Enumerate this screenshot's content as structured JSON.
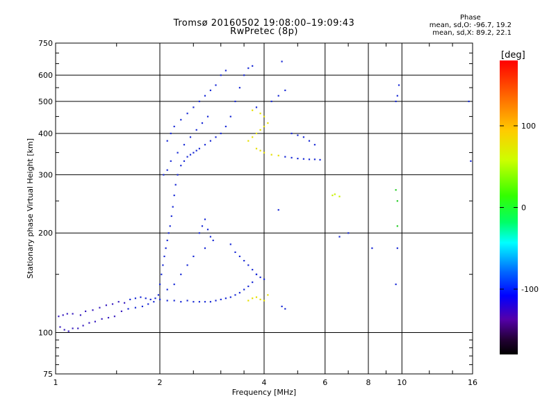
{
  "header": {
    "title_line1": "Tromsø 20160502 19:08:00–19:09:43",
    "title_line2": "RwPretec (8p)"
  },
  "phase_stats": {
    "title": "Phase",
    "line_o": "mean, sd,O: -96.7, 19.2",
    "line_x": "mean, sd,X: 89.2, 22.1"
  },
  "colorbar": {
    "unit_label": "[deg]",
    "tick_labels": [
      "100",
      "0",
      "-100"
    ],
    "tick_values": [
      100,
      0,
      -100
    ],
    "range": [
      -180,
      180
    ]
  },
  "chart_data": {
    "type": "scatter",
    "title": "Tromsø 20160502 19:08:00–19:09:43",
    "subtitle": "RwPretec (8p)",
    "xlabel": "Frequency [MHz]",
    "ylabel": "Stationary phase Virtual Height [km]",
    "x_scale": "log",
    "y_scale": "log",
    "xlim": [
      1,
      16
    ],
    "ylim": [
      75,
      750
    ],
    "x_ticks": [
      1,
      2,
      4,
      6,
      8,
      10,
      16
    ],
    "x_tick_labels": [
      "1",
      "2",
      "4",
      "6",
      "8",
      "10",
      "16"
    ],
    "y_ticks": [
      75,
      100,
      200,
      300,
      400,
      500,
      600,
      750
    ],
    "y_tick_labels": [
      "75",
      "100",
      "200",
      "300",
      "400",
      "500",
      "600",
      "750"
    ],
    "grid": true,
    "color_encoding": "phase [deg]",
    "series": [
      {
        "points": [
          [
            1.02,
            112
          ],
          [
            1.05,
            113
          ],
          [
            1.08,
            114
          ],
          [
            1.12,
            114
          ],
          [
            1.18,
            113
          ],
          [
            1.22,
            116
          ],
          [
            1.28,
            117
          ],
          [
            1.34,
            119
          ],
          [
            1.4,
            121
          ],
          [
            1.46,
            122
          ],
          [
            1.52,
            124
          ],
          [
            1.58,
            123
          ],
          [
            1.64,
            126
          ],
          [
            1.7,
            127
          ],
          [
            1.76,
            128
          ],
          [
            1.82,
            127
          ],
          [
            1.88,
            126
          ],
          [
            1.94,
            127
          ],
          [
            2.0,
            126
          ],
          [
            2.1,
            125
          ],
          [
            2.2,
            125
          ],
          [
            2.3,
            124
          ],
          [
            2.4,
            125
          ],
          [
            2.5,
            124
          ],
          [
            2.6,
            124
          ],
          [
            2.7,
            124
          ],
          [
            2.8,
            124
          ],
          [
            2.9,
            125
          ],
          [
            3.0,
            126
          ],
          [
            3.1,
            127
          ],
          [
            3.2,
            128
          ],
          [
            3.3,
            130
          ],
          [
            3.4,
            132
          ],
          [
            3.5,
            135
          ],
          [
            3.6,
            138
          ],
          [
            3.7,
            142
          ],
          [
            3.8,
            150
          ],
          [
            1.03,
            104
          ],
          [
            1.06,
            102
          ],
          [
            1.09,
            101
          ],
          [
            1.12,
            103
          ],
          [
            1.16,
            103
          ],
          [
            1.2,
            105
          ],
          [
            1.25,
            107
          ],
          [
            1.3,
            108
          ],
          [
            1.36,
            110
          ],
          [
            1.42,
            111
          ],
          [
            1.48,
            112
          ],
          [
            1.55,
            116
          ],
          [
            1.62,
            118
          ],
          [
            1.7,
            119
          ],
          [
            1.78,
            120
          ],
          [
            1.85,
            122
          ],
          [
            1.92,
            124
          ],
          [
            1.98,
            130
          ],
          [
            2.0,
            140
          ],
          [
            2.02,
            150
          ],
          [
            2.04,
            160
          ],
          [
            2.06,
            170
          ],
          [
            2.08,
            180
          ],
          [
            2.1,
            190
          ],
          [
            2.12,
            200
          ],
          [
            2.14,
            210
          ],
          [
            2.16,
            225
          ],
          [
            2.18,
            240
          ],
          [
            2.2,
            260
          ],
          [
            2.22,
            280
          ],
          [
            2.25,
            300
          ],
          [
            2.3,
            320
          ],
          [
            2.35,
            330
          ],
          [
            2.4,
            340
          ],
          [
            2.45,
            345
          ],
          [
            2.5,
            350
          ],
          [
            2.55,
            355
          ],
          [
            2.6,
            360
          ],
          [
            2.7,
            370
          ],
          [
            2.8,
            380
          ],
          [
            2.9,
            390
          ],
          [
            3.0,
            400
          ],
          [
            3.1,
            420
          ],
          [
            3.2,
            450
          ],
          [
            3.3,
            500
          ],
          [
            3.4,
            550
          ],
          [
            3.5,
            600
          ],
          [
            3.6,
            630
          ],
          [
            3.7,
            640
          ],
          [
            2.1,
            380
          ],
          [
            2.15,
            400
          ],
          [
            2.2,
            420
          ],
          [
            2.3,
            440
          ],
          [
            2.4,
            460
          ],
          [
            2.5,
            480
          ],
          [
            2.6,
            500
          ],
          [
            2.7,
            520
          ],
          [
            2.8,
            540
          ],
          [
            2.9,
            560
          ],
          [
            3.0,
            600
          ],
          [
            3.1,
            620
          ],
          [
            2.05,
            300
          ],
          [
            2.1,
            310
          ],
          [
            2.15,
            330
          ],
          [
            2.25,
            350
          ],
          [
            2.35,
            370
          ],
          [
            2.45,
            390
          ],
          [
            2.55,
            410
          ],
          [
            2.65,
            430
          ],
          [
            2.75,
            450
          ],
          [
            2.6,
            200
          ],
          [
            2.65,
            210
          ],
          [
            2.7,
            220
          ],
          [
            2.75,
            205
          ],
          [
            2.8,
            195
          ],
          [
            2.85,
            190
          ],
          [
            2.7,
            180
          ],
          [
            2.5,
            170
          ],
          [
            2.4,
            160
          ],
          [
            2.3,
            150
          ],
          [
            2.2,
            140
          ],
          [
            2.1,
            135
          ],
          [
            3.2,
            185
          ],
          [
            3.3,
            175
          ],
          [
            3.4,
            170
          ],
          [
            3.5,
            165
          ],
          [
            3.6,
            160
          ],
          [
            3.7,
            155
          ],
          [
            3.8,
            150
          ],
          [
            3.9,
            147
          ],
          [
            4.0,
            145
          ],
          [
            3.6,
            125
          ],
          [
            3.7,
            127
          ],
          [
            3.8,
            128
          ],
          [
            3.9,
            126
          ],
          [
            4.0,
            125
          ],
          [
            4.1,
            130
          ],
          [
            3.6,
            380
          ],
          [
            3.7,
            390
          ],
          [
            3.8,
            400
          ],
          [
            3.9,
            410
          ],
          [
            4.0,
            420
          ],
          [
            4.1,
            430
          ],
          [
            3.8,
            360
          ],
          [
            3.9,
            355
          ],
          [
            4.0,
            350
          ],
          [
            4.2,
            345
          ],
          [
            4.4,
            343
          ],
          [
            4.6,
            340
          ],
          [
            4.8,
            338
          ],
          [
            5.0,
            336
          ],
          [
            5.2,
            335
          ],
          [
            5.4,
            334
          ],
          [
            5.6,
            334
          ],
          [
            5.8,
            333
          ],
          [
            3.7,
            470
          ],
          [
            3.8,
            480
          ],
          [
            3.9,
            460
          ],
          [
            4.0,
            450
          ],
          [
            4.2,
            500
          ],
          [
            4.4,
            520
          ],
          [
            4.6,
            540
          ],
          [
            4.8,
            400
          ],
          [
            5.0,
            395
          ],
          [
            5.2,
            390
          ],
          [
            5.4,
            380
          ],
          [
            5.6,
            370
          ],
          [
            6.3,
            260
          ],
          [
            6.4,
            262
          ],
          [
            6.6,
            258
          ],
          [
            7.0,
            200
          ],
          [
            6.6,
            195
          ],
          [
            8.2,
            180
          ],
          [
            9.6,
            270
          ],
          [
            9.7,
            250
          ],
          [
            9.7,
            210
          ],
          [
            9.7,
            180
          ],
          [
            9.6,
            140
          ],
          [
            9.8,
            560
          ],
          [
            9.7,
            520
          ],
          [
            9.6,
            500
          ],
          [
            15.6,
            500
          ],
          [
            15.8,
            330
          ],
          [
            4.5,
            120
          ],
          [
            4.6,
            118
          ],
          [
            4.4,
            235
          ],
          [
            4.5,
            660
          ]
        ]
      }
    ]
  }
}
